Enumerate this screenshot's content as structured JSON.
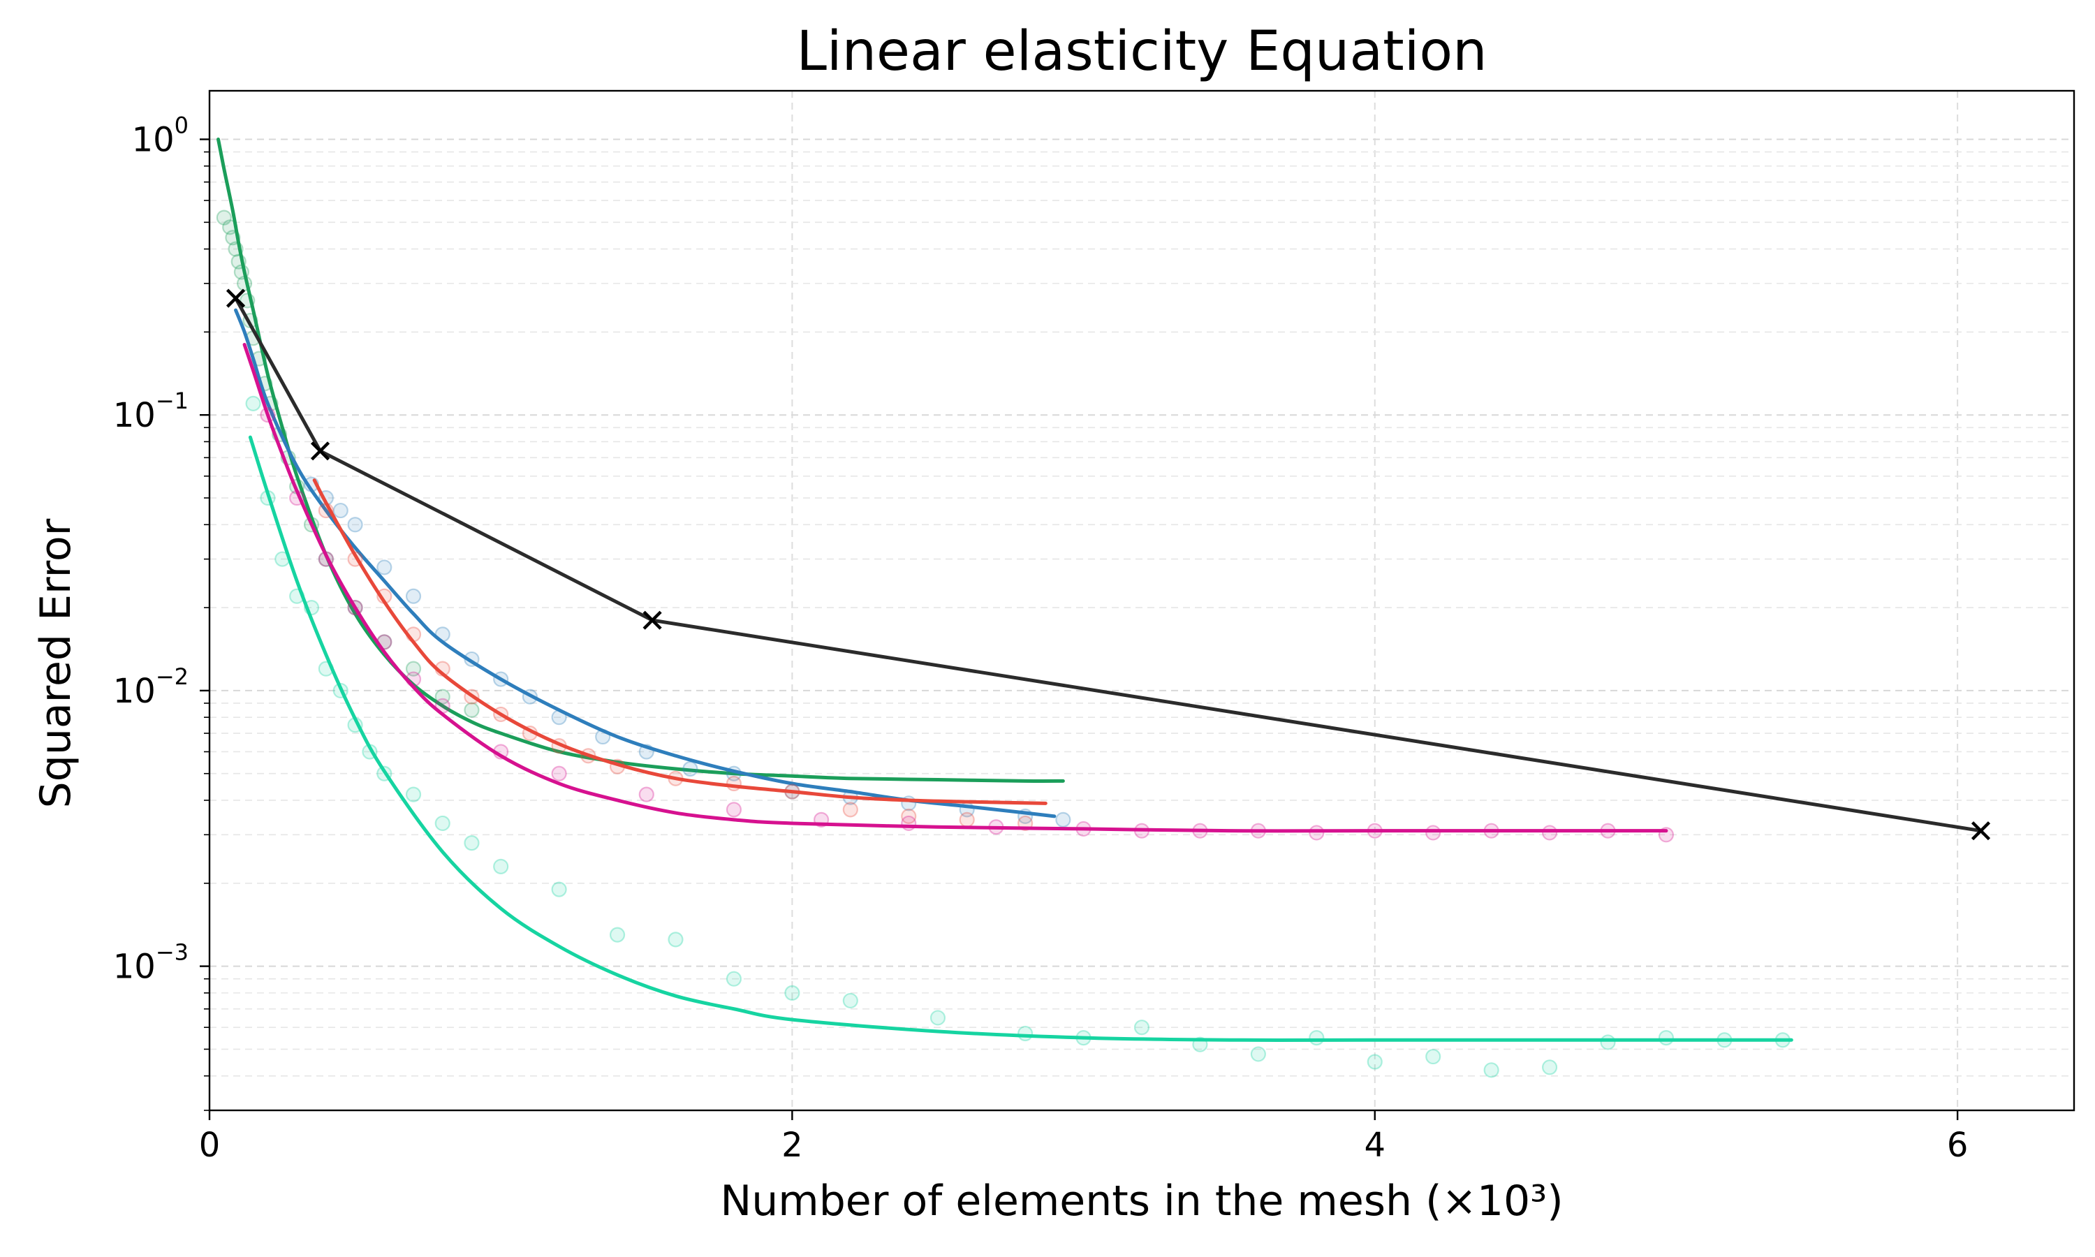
{
  "chart_data": {
    "type": "line",
    "title": "Linear elasticity Equation",
    "xlabel": "Number of elements in the mesh (×10³)",
    "ylabel": "Squared Error",
    "xlim": [
      0,
      6.4
    ],
    "ylim": [
      0.0003,
      1.5
    ],
    "yscale": "log",
    "grid": true,
    "x_ticks": [
      {
        "value": 0,
        "label": "0"
      },
      {
        "value": 2,
        "label": "2"
      },
      {
        "value": 4,
        "label": "4"
      },
      {
        "value": 6,
        "label": "6"
      }
    ],
    "y_ticks": [
      {
        "value": 1,
        "base": "10",
        "exp": "0"
      },
      {
        "value": 0.1,
        "base": "10",
        "exp": "−1"
      },
      {
        "value": 0.01,
        "base": "10",
        "exp": "−2"
      },
      {
        "value": 0.001,
        "base": "10",
        "exp": "−3"
      }
    ],
    "series": [
      {
        "color": "#1b9e5a",
        "style": "curve",
        "x": [
          0.03,
          0.05,
          0.08,
          0.1,
          0.12,
          0.15,
          0.2,
          0.25,
          0.3,
          0.4,
          0.5,
          0.6,
          0.7,
          0.8,
          0.9,
          1.0,
          1.2,
          1.4,
          1.6,
          1.8,
          2.0,
          2.2,
          2.5,
          2.8,
          2.93
        ],
        "y": [
          1.0,
          0.78,
          0.55,
          0.42,
          0.33,
          0.24,
          0.14,
          0.09,
          0.06,
          0.031,
          0.019,
          0.0135,
          0.0105,
          0.0088,
          0.0077,
          0.007,
          0.006,
          0.0055,
          0.0052,
          0.005,
          0.0049,
          0.0048,
          0.00475,
          0.0047,
          0.0047
        ],
        "scatter": {
          "x": [
            0.05,
            0.07,
            0.08,
            0.09,
            0.1,
            0.11,
            0.12,
            0.13,
            0.14,
            0.15,
            0.17,
            0.19,
            0.21,
            0.24,
            0.27,
            0.3,
            0.35,
            0.4,
            0.5,
            0.6,
            0.7,
            0.8,
            0.9
          ],
          "y": [
            0.52,
            0.48,
            0.44,
            0.4,
            0.36,
            0.33,
            0.3,
            0.26,
            0.22,
            0.19,
            0.16,
            0.13,
            0.11,
            0.085,
            0.07,
            0.055,
            0.04,
            0.03,
            0.02,
            0.015,
            0.012,
            0.0095,
            0.0085
          ]
        }
      },
      {
        "color": "#2e7ebc",
        "style": "curve",
        "x": [
          0.09,
          0.12,
          0.15,
          0.2,
          0.3,
          0.4,
          0.5,
          0.6,
          0.7,
          0.8,
          1.0,
          1.2,
          1.4,
          1.6,
          1.8,
          2.0,
          2.2,
          2.4,
          2.6,
          2.8,
          2.9
        ],
        "y": [
          0.24,
          0.2,
          0.16,
          0.11,
          0.065,
          0.045,
          0.033,
          0.025,
          0.019,
          0.015,
          0.011,
          0.0085,
          0.0068,
          0.0058,
          0.0051,
          0.0046,
          0.0043,
          0.004,
          0.0038,
          0.0036,
          0.0035
        ],
        "scatter": {
          "x": [
            0.35,
            0.4,
            0.45,
            0.5,
            0.6,
            0.7,
            0.8,
            0.9,
            1.0,
            1.1,
            1.2,
            1.35,
            1.5,
            1.65,
            1.8,
            2.0,
            2.2,
            2.4,
            2.6,
            2.8,
            2.93
          ],
          "y": [
            0.056,
            0.05,
            0.045,
            0.04,
            0.028,
            0.022,
            0.016,
            0.013,
            0.011,
            0.0095,
            0.008,
            0.0068,
            0.006,
            0.0052,
            0.005,
            0.0043,
            0.0041,
            0.0039,
            0.0037,
            0.0035,
            0.0034
          ]
        }
      },
      {
        "color": "#e8483a",
        "style": "curve",
        "x": [
          0.36,
          0.4,
          0.5,
          0.6,
          0.7,
          0.8,
          1.0,
          1.2,
          1.4,
          1.6,
          1.8,
          2.0,
          2.2,
          2.4,
          2.6,
          2.87
        ],
        "y": [
          0.058,
          0.048,
          0.031,
          0.021,
          0.015,
          0.0115,
          0.0082,
          0.0064,
          0.0054,
          0.0048,
          0.0045,
          0.0043,
          0.0041,
          0.004,
          0.00395,
          0.0039
        ],
        "scatter": {
          "x": [
            0.4,
            0.5,
            0.6,
            0.7,
            0.8,
            0.9,
            1.0,
            1.1,
            1.2,
            1.3,
            1.4,
            1.6,
            1.8,
            2.0,
            2.2,
            2.4,
            2.6,
            2.8
          ],
          "y": [
            0.045,
            0.03,
            0.022,
            0.016,
            0.012,
            0.0095,
            0.0082,
            0.007,
            0.0063,
            0.0058,
            0.0053,
            0.0048,
            0.0046,
            0.0043,
            0.0037,
            0.0035,
            0.0034,
            0.0033
          ]
        }
      },
      {
        "color": "#d6118f",
        "style": "curve",
        "x": [
          0.12,
          0.15,
          0.2,
          0.25,
          0.3,
          0.4,
          0.5,
          0.6,
          0.7,
          0.8,
          1.0,
          1.2,
          1.4,
          1.6,
          1.8,
          2.0,
          2.5,
          3.0,
          3.5,
          4.0,
          4.5,
          5.0
        ],
        "y": [
          0.18,
          0.145,
          0.1,
          0.072,
          0.053,
          0.031,
          0.02,
          0.0138,
          0.0103,
          0.0082,
          0.0058,
          0.0046,
          0.004,
          0.0036,
          0.0034,
          0.0033,
          0.0032,
          0.00315,
          0.0031,
          0.0031,
          0.0031,
          0.0031
        ],
        "scatter": {
          "x": [
            0.2,
            0.3,
            0.4,
            0.5,
            0.6,
            0.7,
            0.8,
            1.0,
            1.2,
            1.5,
            1.8,
            2.1,
            2.4,
            2.7,
            3.0,
            3.2,
            3.4,
            3.6,
            3.8,
            4.0,
            4.2,
            4.4,
            4.6,
            4.8,
            5.0
          ],
          "y": [
            0.1,
            0.05,
            0.03,
            0.02,
            0.015,
            0.011,
            0.0088,
            0.006,
            0.005,
            0.0042,
            0.0037,
            0.0034,
            0.0033,
            0.0032,
            0.00315,
            0.0031,
            0.0031,
            0.0031,
            0.00305,
            0.0031,
            0.00305,
            0.0031,
            0.00305,
            0.0031,
            0.003
          ]
        }
      },
      {
        "color": "#16d4a1",
        "style": "curve",
        "x": [
          0.14,
          0.2,
          0.3,
          0.4,
          0.5,
          0.6,
          0.8,
          1.0,
          1.2,
          1.4,
          1.6,
          1.8,
          2.0,
          2.5,
          3.0,
          3.5,
          4.0,
          4.5,
          5.0,
          5.43
        ],
        "y": [
          0.083,
          0.052,
          0.025,
          0.0135,
          0.0079,
          0.0051,
          0.0026,
          0.00162,
          0.00118,
          0.00093,
          0.00078,
          0.0007,
          0.00064,
          0.00058,
          0.00055,
          0.00054,
          0.00054,
          0.00054,
          0.00054,
          0.00054
        ],
        "scatter": {
          "x": [
            0.15,
            0.2,
            0.25,
            0.3,
            0.35,
            0.4,
            0.45,
            0.5,
            0.55,
            0.6,
            0.7,
            0.8,
            0.9,
            1.0,
            1.2,
            1.4,
            1.6,
            1.8,
            2.0,
            2.2,
            2.5,
            2.8,
            3.0,
            3.2,
            3.4,
            3.6,
            3.8,
            4.0,
            4.2,
            4.4,
            4.6,
            4.8,
            5.0,
            5.2,
            5.4
          ],
          "y": [
            0.11,
            0.05,
            0.03,
            0.022,
            0.02,
            0.012,
            0.01,
            0.0075,
            0.006,
            0.005,
            0.0042,
            0.0033,
            0.0028,
            0.0023,
            0.0019,
            0.0013,
            0.00125,
            0.0009,
            0.0008,
            0.00075,
            0.00065,
            0.00057,
            0.00055,
            0.0006,
            0.00052,
            0.00048,
            0.00055,
            0.00045,
            0.00047,
            0.00042,
            0.00043,
            0.00053,
            0.00055,
            0.00054,
            0.00054
          ]
        }
      },
      {
        "color": "#2b2b2b",
        "style": "polyline",
        "marker": "x",
        "x": [
          0.09,
          0.38,
          1.52,
          6.08
        ],
        "y": [
          0.265,
          0.074,
          0.018,
          0.0031
        ]
      }
    ]
  }
}
